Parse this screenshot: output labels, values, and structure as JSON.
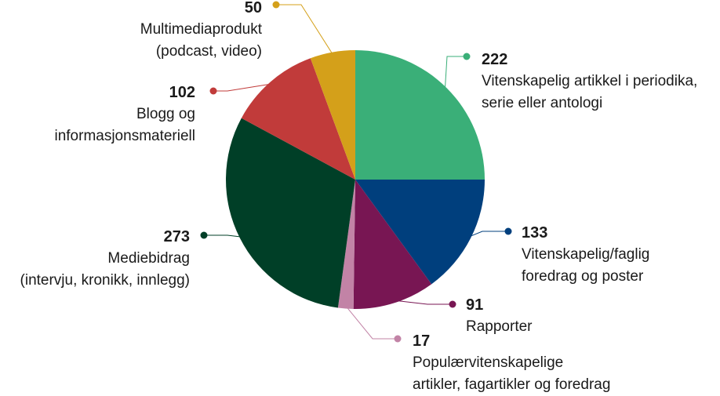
{
  "chart_data": {
    "type": "pie",
    "slices": [
      {
        "label": "Vitenskapelig artikkel i periodika,\nserie eller antologi",
        "value": 222,
        "color": "#3aaf78"
      },
      {
        "label": "Vitenskapelig/faglig\nforedrag og poster",
        "value": 133,
        "color": "#003f7d"
      },
      {
        "label": "Rapporter",
        "value": 91,
        "color": "#781653"
      },
      {
        "label": "Populærvitenskapelige\nartikler, fagartikler og foredrag",
        "value": 17,
        "color": "#c283a6"
      },
      {
        "label": "Mediebidrag\n(intervju, kronikk, innlegg)",
        "value": 273,
        "color": "#003f27"
      },
      {
        "label": "Blogg og\ninformasjonsmateriell",
        "value": 102,
        "color": "#c13b3a"
      },
      {
        "label": "Multimediaprodukt\n(podcast, video)",
        "value": 50,
        "color": "#d4a01a"
      }
    ],
    "title": "",
    "legend": "none"
  }
}
